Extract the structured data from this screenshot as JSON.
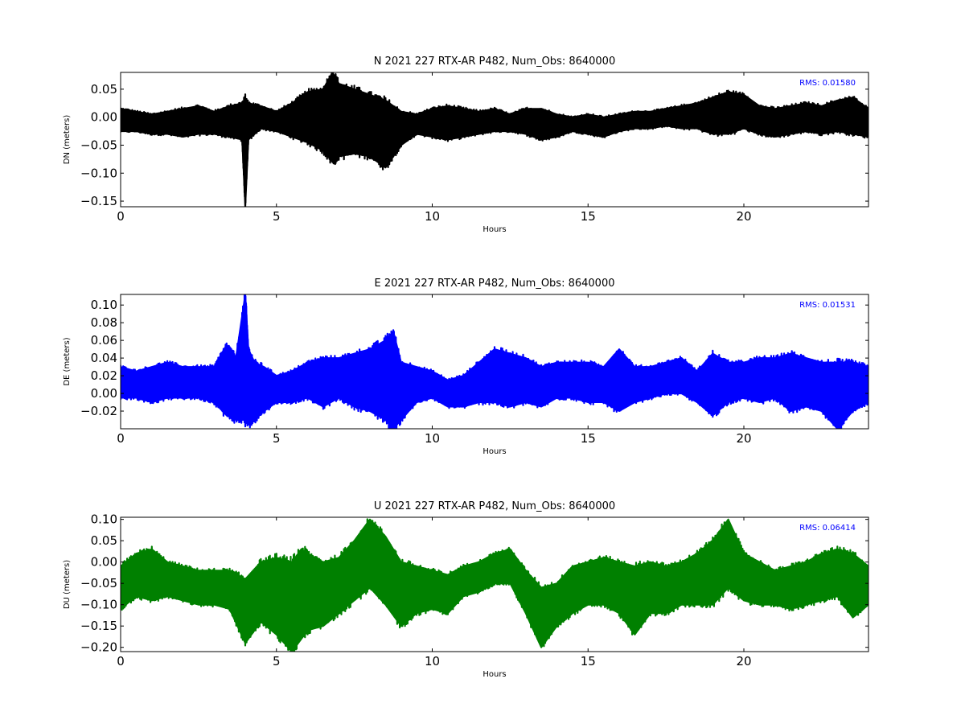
{
  "chart_data": [
    {
      "type": "line",
      "title": "N 2021 227 RTX-AR  P482, Num_Obs: 8640000",
      "xlabel": "Hours",
      "ylabel": "DN (meters)",
      "xlim": [
        0,
        24
      ],
      "ylim": [
        -0.16,
        0.08
      ],
      "xticks": [
        0,
        5,
        10,
        15,
        20
      ],
      "xtick_labels": [
        "0",
        "5",
        "10",
        "15",
        "20"
      ],
      "yticks": [
        0.05,
        0.0,
        -0.05,
        -0.1,
        -0.15
      ],
      "ytick_labels": [
        "0.05",
        "0.00",
        "−0.05",
        "−0.10",
        "−0.15"
      ],
      "color": "#000000",
      "rms_label": "RMS:  0.01580",
      "rms_color": "#0000ff",
      "series": [
        {
          "x": [
            0,
            0.5,
            1,
            1.5,
            2,
            2.5,
            3,
            3.5,
            3.9,
            4.0,
            4.1,
            4.5,
            5,
            5.5,
            6,
            6.5,
            6.8,
            7,
            7.5,
            8,
            8.5,
            9,
            9.5,
            10,
            10.5,
            11,
            11.5,
            12,
            12.5,
            13,
            13.5,
            14,
            14.5,
            15,
            15.5,
            16,
            16.5,
            17,
            17.5,
            18,
            18.5,
            19,
            19.5,
            20,
            20.5,
            21,
            21.5,
            22,
            22.5,
            23,
            23.5,
            24
          ],
          "upper": [
            0.015,
            0.01,
            0.005,
            0.01,
            0.015,
            0.02,
            0.01,
            0.02,
            0.025,
            0.03,
            0.025,
            0.02,
            0.01,
            0.025,
            0.045,
            0.05,
            0.08,
            0.06,
            0.05,
            0.04,
            0.03,
            0.01,
            0.005,
            0.015,
            0.02,
            0.015,
            0.01,
            0.015,
            0.005,
            0.015,
            0.015,
            0.005,
            0.0,
            0.005,
            0.0,
            0.005,
            0.01,
            0.01,
            0.015,
            0.02,
            0.025,
            0.035,
            0.045,
            0.04,
            0.02,
            0.015,
            0.02,
            0.025,
            0.02,
            0.03,
            0.035,
            0.015
          ],
          "lower": [
            -0.025,
            -0.025,
            -0.03,
            -0.03,
            -0.035,
            -0.03,
            -0.03,
            -0.035,
            -0.04,
            -0.16,
            -0.04,
            -0.02,
            -0.025,
            -0.035,
            -0.045,
            -0.06,
            -0.08,
            -0.07,
            -0.065,
            -0.07,
            -0.09,
            -0.05,
            -0.03,
            -0.035,
            -0.04,
            -0.035,
            -0.03,
            -0.025,
            -0.025,
            -0.03,
            -0.04,
            -0.035,
            -0.025,
            -0.03,
            -0.035,
            -0.025,
            -0.02,
            -0.02,
            -0.015,
            -0.02,
            -0.02,
            -0.03,
            -0.03,
            -0.02,
            -0.03,
            -0.035,
            -0.03,
            -0.025,
            -0.03,
            -0.025,
            -0.03,
            -0.035
          ]
        }
      ]
    },
    {
      "type": "line",
      "title": "E 2021 227 RTX-AR  P482, Num_Obs: 8640000",
      "xlabel": "Hours",
      "ylabel": "DE (meters)",
      "xlim": [
        0,
        24
      ],
      "ylim": [
        -0.04,
        0.112
      ],
      "xticks": [
        0,
        5,
        10,
        15,
        20
      ],
      "xtick_labels": [
        "0",
        "5",
        "10",
        "15",
        "20"
      ],
      "yticks": [
        0.1,
        0.08,
        0.06,
        0.04,
        0.02,
        0.0,
        -0.02
      ],
      "ytick_labels": [
        "0.10",
        "0.08",
        "0.06",
        "0.04",
        "0.02",
        "0.00",
        "−0.02"
      ],
      "color": "#0000ff",
      "rms_label": "RMS:  0.01531",
      "rms_color": "#0000ff",
      "series": [
        {
          "x": [
            0,
            0.5,
            1,
            1.5,
            2,
            2.5,
            3,
            3.4,
            3.7,
            4.0,
            4.1,
            4.3,
            4.6,
            5,
            5.5,
            6,
            6.5,
            7,
            7.5,
            8,
            8.5,
            8.75,
            9,
            9.5,
            10,
            10.5,
            11,
            11.5,
            12,
            12.5,
            13,
            13.5,
            14,
            14.5,
            15,
            15.5,
            16,
            16.5,
            17,
            17.5,
            18,
            18.5,
            19,
            19.5,
            20,
            20.5,
            21,
            21.5,
            22,
            22.5,
            23,
            23.5,
            24
          ],
          "upper": [
            0.03,
            0.025,
            0.03,
            0.035,
            0.03,
            0.03,
            0.03,
            0.055,
            0.04,
            0.112,
            0.05,
            0.035,
            0.03,
            0.02,
            0.025,
            0.035,
            0.04,
            0.04,
            0.045,
            0.05,
            0.06,
            0.07,
            0.035,
            0.03,
            0.025,
            0.015,
            0.02,
            0.035,
            0.05,
            0.045,
            0.04,
            0.03,
            0.035,
            0.035,
            0.035,
            0.03,
            0.05,
            0.03,
            0.03,
            0.035,
            0.04,
            0.025,
            0.045,
            0.035,
            0.035,
            0.04,
            0.04,
            0.045,
            0.04,
            0.035,
            0.035,
            0.035,
            0.03
          ],
          "lower": [
            -0.005,
            -0.005,
            -0.01,
            -0.005,
            -0.005,
            -0.005,
            -0.01,
            -0.025,
            -0.03,
            -0.03,
            -0.035,
            -0.03,
            -0.02,
            -0.01,
            -0.01,
            -0.005,
            -0.015,
            -0.005,
            -0.015,
            -0.02,
            -0.03,
            -0.04,
            -0.03,
            -0.01,
            -0.005,
            -0.015,
            -0.015,
            -0.01,
            -0.01,
            -0.015,
            -0.01,
            -0.015,
            -0.005,
            -0.005,
            -0.01,
            -0.01,
            -0.02,
            -0.01,
            -0.005,
            0.0,
            0.0,
            -0.01,
            -0.025,
            -0.01,
            -0.005,
            -0.01,
            -0.005,
            -0.02,
            -0.015,
            -0.02,
            -0.04,
            -0.02,
            -0.01
          ]
        }
      ]
    },
    {
      "type": "line",
      "title": "U 2021 227 RTX-AR  P482, Num_Obs: 8640000",
      "xlabel": "Hours",
      "ylabel": "DU (meters)",
      "xlim": [
        0,
        24
      ],
      "ylim": [
        -0.21,
        0.105
      ],
      "xticks": [
        0,
        5,
        10,
        15,
        20
      ],
      "xtick_labels": [
        "0",
        "5",
        "10",
        "15",
        "20"
      ],
      "yticks": [
        0.1,
        0.05,
        0.0,
        -0.05,
        -0.1,
        -0.15,
        -0.2
      ],
      "ytick_labels": [
        "0.10",
        "0.05",
        "0.00",
        "−0.05",
        "−0.10",
        "−0.15",
        "−0.20"
      ],
      "color": "#008000",
      "rms_label": "RMS:  0.06414",
      "rms_color": "#0000ff",
      "series": [
        {
          "x": [
            0,
            0.5,
            1,
            1.5,
            2,
            2.5,
            3,
            3.5,
            4,
            4.5,
            5,
            5.5,
            5.8,
            6,
            6.5,
            7,
            7.5,
            8,
            8.5,
            9,
            9.5,
            10,
            10.5,
            11,
            11.5,
            12,
            12.5,
            13,
            13.5,
            14,
            14.5,
            15,
            15.5,
            16,
            16.5,
            17,
            17.5,
            18,
            18.5,
            19,
            19.5,
            20,
            20.5,
            21,
            21.5,
            22,
            22.5,
            23,
            23.5,
            24
          ],
          "upper": [
            -0.01,
            0.02,
            0.03,
            0.0,
            -0.01,
            -0.02,
            -0.02,
            -0.02,
            -0.04,
            0.0,
            0.01,
            0.0,
            0.03,
            0.02,
            0.0,
            0.01,
            0.05,
            0.1,
            0.06,
            0.0,
            -0.01,
            -0.02,
            -0.03,
            -0.01,
            0.0,
            0.02,
            0.03,
            -0.02,
            -0.06,
            -0.05,
            -0.01,
            0.0,
            0.01,
            0.0,
            -0.01,
            0.0,
            -0.01,
            0.0,
            0.02,
            0.05,
            0.1,
            0.02,
            0.0,
            -0.02,
            -0.01,
            0.0,
            0.02,
            0.03,
            0.02,
            -0.01
          ],
          "lower": [
            -0.11,
            -0.08,
            -0.09,
            -0.08,
            -0.09,
            -0.1,
            -0.1,
            -0.11,
            -0.19,
            -0.14,
            -0.17,
            -0.21,
            -0.18,
            -0.16,
            -0.15,
            -0.12,
            -0.09,
            -0.06,
            -0.1,
            -0.15,
            -0.12,
            -0.11,
            -0.12,
            -0.08,
            -0.07,
            -0.05,
            -0.05,
            -0.12,
            -0.2,
            -0.15,
            -0.12,
            -0.1,
            -0.1,
            -0.12,
            -0.17,
            -0.12,
            -0.12,
            -0.1,
            -0.1,
            -0.1,
            -0.06,
            -0.09,
            -0.1,
            -0.1,
            -0.11,
            -0.1,
            -0.09,
            -0.08,
            -0.13,
            -0.1
          ]
        }
      ]
    }
  ]
}
